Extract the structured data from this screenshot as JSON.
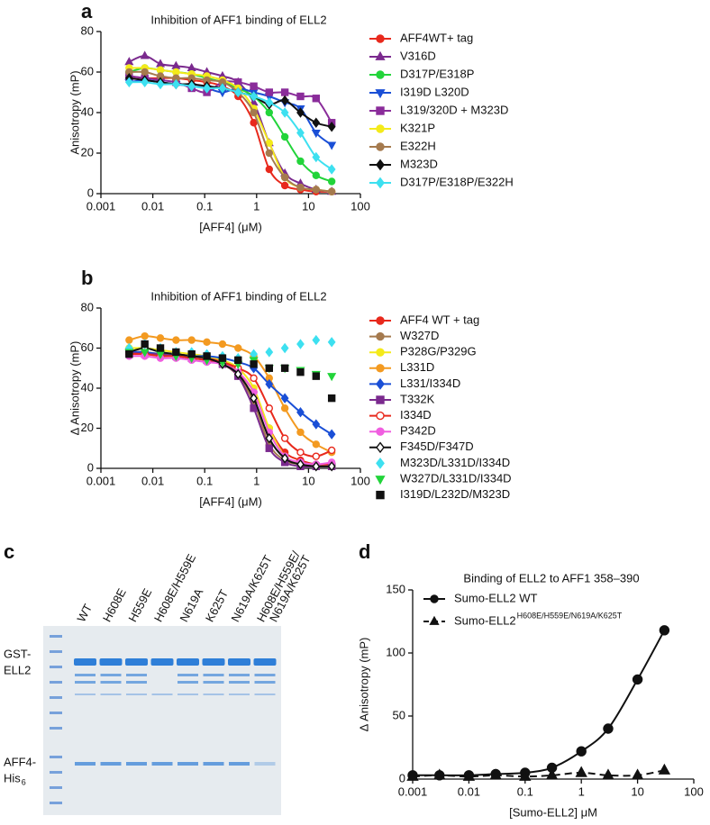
{
  "panels": [
    "a",
    "b",
    "c",
    "d"
  ],
  "chart_data": [
    {
      "type": "line",
      "title": "Inhibition of AFF1 binding of ELL2",
      "x_label": "[AFF4] (μM)",
      "y_label": "Anisotropy (mP)",
      "x_scale": "log",
      "xlim": [
        0.001,
        100
      ],
      "xticks": [
        0.001,
        0.01,
        0.1,
        1,
        10,
        100
      ],
      "ylim": [
        0,
        80
      ],
      "yticks": [
        0,
        20,
        40,
        60,
        80
      ],
      "legend": "right",
      "x": [
        0.0035,
        0.007,
        0.014,
        0.028,
        0.056,
        0.11,
        0.22,
        0.44,
        0.88,
        1.75,
        3.5,
        7,
        14,
        28
      ],
      "series": [
        {
          "name": "AFF4WT+ tag",
          "color": "#e8291c",
          "marker": "circle",
          "values": [
            58,
            57,
            57,
            57,
            56,
            55,
            53,
            48,
            35,
            12,
            4,
            2,
            1,
            1
          ]
        },
        {
          "name": "V316D",
          "color": "#7b2a8e",
          "marker": "triangle",
          "values": [
            65,
            68,
            64,
            63,
            62,
            60,
            58,
            55,
            45,
            25,
            10,
            5,
            2,
            1
          ]
        },
        {
          "name": "D317P/E318P",
          "color": "#22d43a",
          "marker": "circle",
          "values": [
            60,
            62,
            61,
            60,
            59,
            57,
            55,
            52,
            48,
            40,
            28,
            16,
            9,
            6
          ]
        },
        {
          "name": "I319D L320D",
          "color": "#1a4fd6",
          "marker": "triangle-down",
          "values": [
            55,
            56,
            55,
            54,
            53,
            52,
            50,
            52,
            50,
            48,
            45,
            42,
            30,
            24
          ]
        },
        {
          "name": "L319/320D + M323D",
          "color": "#8a2c9a",
          "marker": "square",
          "values": [
            58,
            57,
            56,
            55,
            52,
            50,
            55,
            55,
            53,
            50,
            50,
            48,
            47,
            35
          ]
        },
        {
          "name": "K321P",
          "color": "#f4ea1a",
          "marker": "circle",
          "values": [
            62,
            62,
            61,
            60,
            59,
            58,
            56,
            52,
            42,
            25,
            8,
            3,
            2,
            1
          ]
        },
        {
          "name": "E322H",
          "color": "#a57a4e",
          "marker": "circle",
          "values": [
            60,
            60,
            58,
            57,
            57,
            56,
            55,
            50,
            40,
            20,
            8,
            3,
            2,
            1
          ]
        },
        {
          "name": "M323D",
          "color": "#111111",
          "marker": "diamond",
          "values": [
            57,
            56,
            55,
            54,
            54,
            53,
            52,
            50,
            48,
            44,
            46,
            40,
            35,
            33
          ]
        },
        {
          "name": "D317P/E318P/E322H",
          "color": "#3de0f0",
          "marker": "diamond",
          "values": [
            55,
            55,
            54,
            54,
            53,
            52,
            52,
            50,
            48,
            45,
            40,
            30,
            18,
            12
          ]
        }
      ]
    },
    {
      "type": "line",
      "title": "Inhibition of AFF1 binding of ELL2",
      "x_label": "[AFF4] (μM)",
      "y_label": "Δ Anisotropy (mP)",
      "x_scale": "log",
      "xlim": [
        0.001,
        100
      ],
      "xticks": [
        0.001,
        0.01,
        0.1,
        1,
        10,
        100
      ],
      "ylim": [
        0,
        80
      ],
      "yticks": [
        0,
        20,
        40,
        60,
        80
      ],
      "legend": "right",
      "x": [
        0.0035,
        0.007,
        0.014,
        0.028,
        0.056,
        0.11,
        0.22,
        0.44,
        0.88,
        1.75,
        3.5,
        7,
        14,
        28
      ],
      "series": [
        {
          "name": "AFF4 WT + tag",
          "color": "#e8291c",
          "marker": "circle",
          "values": [
            58,
            58,
            57,
            57,
            56,
            55,
            53,
            48,
            38,
            20,
            8,
            4,
            2,
            2
          ]
        },
        {
          "name": "W327D",
          "color": "#a57a4e",
          "marker": "circle",
          "values": [
            58,
            58,
            57,
            56,
            55,
            54,
            52,
            46,
            33,
            12,
            4,
            2,
            1,
            1
          ]
        },
        {
          "name": "P328G/P329G",
          "color": "#f4ea1a",
          "marker": "circle",
          "values": [
            60,
            60,
            59,
            58,
            57,
            56,
            54,
            50,
            40,
            20,
            6,
            2,
            1,
            1
          ]
        },
        {
          "name": "L331D",
          "color": "#f39a21",
          "marker": "circle",
          "values": [
            64,
            66,
            65,
            64,
            64,
            63,
            62,
            60,
            56,
            45,
            30,
            18,
            12,
            8
          ]
        },
        {
          "name": "L331/I334D",
          "color": "#1a4fd6",
          "marker": "diamond",
          "values": [
            58,
            58,
            57,
            57,
            56,
            56,
            55,
            53,
            50,
            42,
            35,
            28,
            22,
            17
          ]
        },
        {
          "name": "T332K",
          "color": "#7b2a8e",
          "marker": "square",
          "values": [
            58,
            57,
            57,
            56,
            55,
            54,
            52,
            46,
            30,
            10,
            3,
            1,
            1,
            1
          ]
        },
        {
          "name": "I334D",
          "color": "#e8291c",
          "marker": "circle",
          "open": true,
          "values": [
            57,
            57,
            56,
            56,
            55,
            54,
            53,
            50,
            45,
            30,
            15,
            8,
            6,
            9
          ]
        },
        {
          "name": "P342D",
          "color": "#f05ee0",
          "marker": "circle",
          "values": [
            56,
            56,
            55,
            55,
            54,
            53,
            52,
            48,
            38,
            18,
            6,
            3,
            2,
            3
          ]
        },
        {
          "name": "F345D/F347D",
          "color": "#111111",
          "marker": "diamond",
          "open": true,
          "values": [
            58,
            60,
            58,
            57,
            56,
            55,
            52,
            47,
            35,
            15,
            5,
            2,
            1,
            1
          ]
        },
        {
          "name": "M323D/L331D/I334D",
          "color": "#3de0f0",
          "marker": "diamond",
          "scatter": true,
          "values": [
            60,
            62,
            60,
            58,
            58,
            57,
            56,
            55,
            57,
            58,
            60,
            62,
            64,
            63
          ]
        },
        {
          "name": "W327D/L331D/I334D",
          "color": "#22d43a",
          "marker": "triangle-down",
          "scatter": true,
          "values": [
            58,
            58,
            57,
            56,
            55,
            54,
            53,
            52,
            54,
            50,
            50,
            49,
            47,
            46
          ]
        },
        {
          "name": "I319D/L232D/M323D",
          "color": "#111111",
          "marker": "square",
          "scatter": true,
          "values": [
            57,
            62,
            60,
            58,
            57,
            56,
            55,
            54,
            52,
            50,
            50,
            48,
            46,
            35
          ]
        }
      ]
    },
    {
      "type": "line",
      "title": "Binding of ELL2 to AFF1 358–390",
      "x_label": "[Sumo-ELL2] μM",
      "y_label": "Δ Anisotropy (mP)",
      "x_scale": "log",
      "xlim": [
        0.001,
        100
      ],
      "xticks": [
        0.001,
        0.01,
        0.1,
        1,
        10,
        100
      ],
      "ylim": [
        0,
        150
      ],
      "yticks": [
        0,
        50,
        100,
        150
      ],
      "legend": "top-left",
      "x": [
        0.001,
        0.003,
        0.01,
        0.03,
        0.1,
        0.3,
        1,
        3,
        10,
        30
      ],
      "series": [
        {
          "name": "Sumo-ELL2 WT",
          "color": "#111111",
          "marker": "circle",
          "values": [
            3,
            3,
            3,
            4,
            5,
            9,
            22,
            40,
            79,
            118
          ]
        },
        {
          "name": "Sumo-ELL2",
          "name_sup": "H608E/H559E/N619A/K625T",
          "color": "#111111",
          "marker": "triangle",
          "dash": true,
          "values": [
            2,
            3,
            2,
            3,
            2,
            3,
            5,
            3,
            3,
            7
          ]
        }
      ]
    }
  ],
  "gel": {
    "lanes": [
      [
        "WT"
      ],
      [
        "H608E"
      ],
      [
        "H559E"
      ],
      [
        "H608E/H559E"
      ],
      [
        "N619A"
      ],
      [
        "K625T"
      ],
      [
        "N619A/K625T"
      ],
      [
        "H608E/H559E/",
        "N619A/K625T"
      ]
    ],
    "labels": [
      {
        "lines": [
          "GST-",
          "ELL2"
        ]
      },
      {
        "lines": [
          "AFF4-",
          "His"
        ],
        "sub": "6"
      }
    ]
  }
}
